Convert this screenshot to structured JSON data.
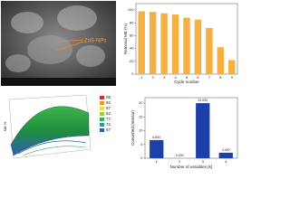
{
  "chart_data": [
    {
      "type": "image",
      "annotation": "ZnS-NPs"
    },
    {
      "type": "bar",
      "ylabel": "Removal MB (%)",
      "xlabel": "Cycle number",
      "categories": [
        "1",
        "2",
        "3",
        "4",
        "5",
        "6",
        "7",
        "8",
        "9"
      ],
      "values": [
        98,
        97,
        95,
        93,
        88,
        85,
        72,
        42,
        22
      ],
      "color": "#f5b041",
      "ylim": [
        0,
        110
      ],
      "yticks": [
        0,
        20,
        40,
        60,
        80,
        100
      ]
    },
    {
      "type": "surface",
      "ylabel": "MB %",
      "levels": [
        95,
        92,
        87,
        82,
        77,
        72,
        67
      ],
      "colors": [
        "#e8262a",
        "#f7941d",
        "#f2e520",
        "#9ccc3c",
        "#3cb44b",
        "#1aa39a",
        "#2c5fb8"
      ]
    },
    {
      "type": "bar",
      "ylabel": "Converted (nMolar)",
      "xlabel": "Number of variables (k)",
      "categories": [
        "1",
        "2",
        "3",
        "4"
      ],
      "values": [
        6.6,
        0,
        20,
        2
      ],
      "value_labels": [
        "6.600",
        "0.000",
        "20.000",
        "2.000"
      ],
      "color": "#1f3fa8",
      "ylim": [
        0,
        22
      ],
      "yticks": [
        0,
        5,
        10,
        15,
        20
      ]
    }
  ]
}
